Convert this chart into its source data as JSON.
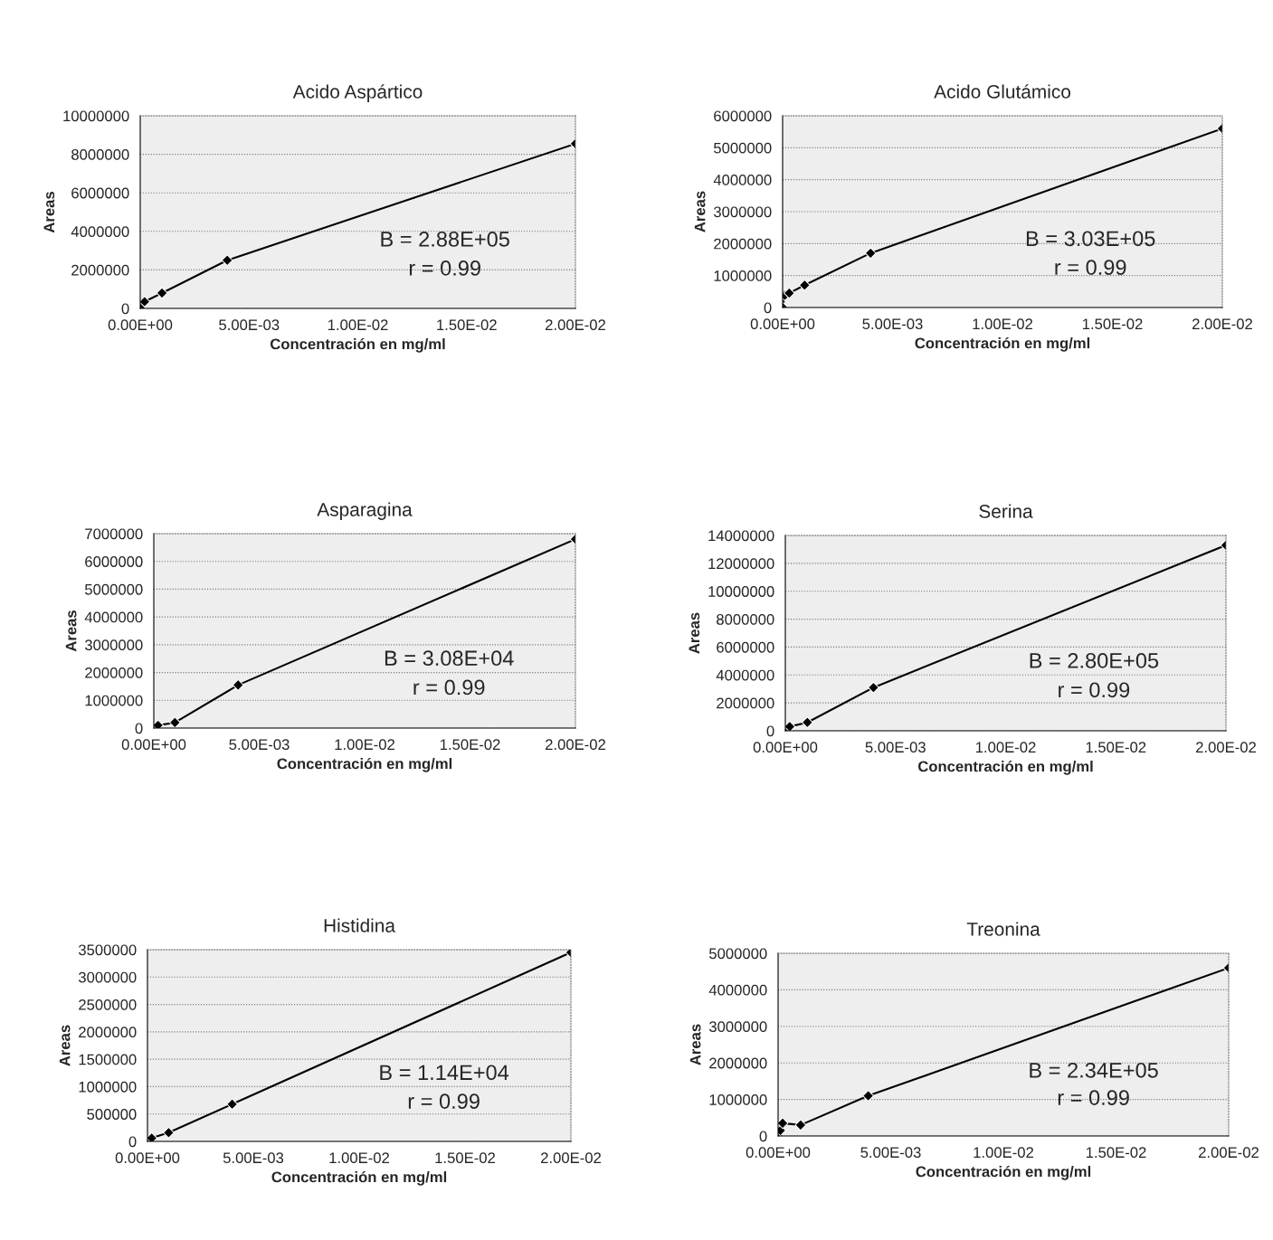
{
  "chart_data": [
    {
      "type": "line",
      "title": "Acido Aspártico",
      "xlabel": "Concentración en mg/ml",
      "ylabel": "Areas",
      "marker": "diamond",
      "grid": "y",
      "legend": false,
      "x": [
        0,
        0.0001,
        0.0002,
        0.001,
        0.004,
        0.02
      ],
      "series": [
        {
          "color": "#000000",
          "values": [
            50000,
            null,
            350000,
            800000,
            2500000,
            8550000
          ]
        }
      ],
      "xlim": [
        0,
        0.02
      ],
      "xticks": [
        {
          "value": 0,
          "label": "0.00E+00"
        },
        {
          "value": 0.005,
          "label": "5.00E-03"
        },
        {
          "value": 0.01,
          "label": "1.00E-02"
        },
        {
          "value": 0.015,
          "label": "1.50E-02"
        },
        {
          "value": 0.02,
          "label": "2.00E-02"
        }
      ],
      "ylim": [
        0,
        10000000
      ],
      "yticks": [
        0,
        2000000,
        4000000,
        6000000,
        8000000,
        10000000
      ],
      "annotations": [
        "B = 2.88E+05",
        "r = 0.99"
      ]
    },
    {
      "type": "line",
      "title": "Acido Glutámico",
      "xlabel": "Concentración en mg/ml",
      "ylabel": "Areas",
      "marker": "diamond",
      "grid": "y",
      "legend": false,
      "x": [
        0,
        0.0001,
        0.0003,
        0.001,
        0.004,
        0.02
      ],
      "series": [
        {
          "color": "#000000",
          "values": [
            0,
            380000,
            450000,
            700000,
            1700000,
            5600000
          ]
        }
      ],
      "xlim": [
        0,
        0.02
      ],
      "xticks": [
        {
          "value": 0,
          "label": "0.00E+00"
        },
        {
          "value": 0.005,
          "label": "5.00E-03"
        },
        {
          "value": 0.01,
          "label": "1.00E-02"
        },
        {
          "value": 0.015,
          "label": "1.50E-02"
        },
        {
          "value": 0.02,
          "label": "2.00E-02"
        }
      ],
      "ylim": [
        0,
        6000000
      ],
      "yticks": [
        0,
        1000000,
        2000000,
        3000000,
        4000000,
        5000000,
        6000000
      ],
      "annotations": [
        "B = 3.03E+05",
        "r = 0.99"
      ]
    },
    {
      "type": "line",
      "title": "Asparagina",
      "xlabel": "Concentración en mg/ml",
      "ylabel": "Areas",
      "marker": "diamond",
      "grid": "y",
      "legend": false,
      "x": [
        0,
        0.0001,
        0.0002,
        0.001,
        0.004,
        0.02
      ],
      "series": [
        {
          "color": "#000000",
          "values": [
            20000,
            50000,
            100000,
            200000,
            1550000,
            6800000
          ]
        }
      ],
      "xlim": [
        0,
        0.02
      ],
      "xticks": [
        {
          "value": 0,
          "label": "0.00E+00"
        },
        {
          "value": 0.005,
          "label": "5.00E-03"
        },
        {
          "value": 0.01,
          "label": "1.00E-02"
        },
        {
          "value": 0.015,
          "label": "1.50E-02"
        },
        {
          "value": 0.02,
          "label": "2.00E-02"
        }
      ],
      "ylim": [
        0,
        7000000
      ],
      "yticks": [
        0,
        1000000,
        2000000,
        3000000,
        4000000,
        5000000,
        6000000,
        7000000
      ],
      "annotations": [
        "B = 3.08E+04",
        "r = 0.99"
      ]
    },
    {
      "type": "line",
      "title": "Serina",
      "xlabel": "Concentración en mg/ml",
      "ylabel": "Areas",
      "marker": "diamond",
      "grid": "y",
      "legend": false,
      "x": [
        0,
        0.0001,
        0.0002,
        0.001,
        0.004,
        0.02
      ],
      "series": [
        {
          "color": "#000000",
          "values": [
            50000,
            150000,
            300000,
            600000,
            3100000,
            13300000
          ]
        }
      ],
      "xlim": [
        0,
        0.02
      ],
      "xticks": [
        {
          "value": 0,
          "label": "0.00E+00"
        },
        {
          "value": 0.005,
          "label": "5.00E-03"
        },
        {
          "value": 0.01,
          "label": "1.00E-02"
        },
        {
          "value": 0.015,
          "label": "1.50E-02"
        },
        {
          "value": 0.02,
          "label": "2.00E-02"
        }
      ],
      "ylim": [
        0,
        14000000
      ],
      "yticks": [
        0,
        2000000,
        4000000,
        6000000,
        8000000,
        10000000,
        12000000,
        14000000
      ],
      "annotations": [
        "B = 2.80E+05",
        "r = 0.99"
      ]
    },
    {
      "type": "line",
      "title": "Histidina",
      "xlabel": "Concentración en mg/ml",
      "ylabel": "Areas",
      "marker": "diamond",
      "grid": "y",
      "legend": false,
      "x": [
        0,
        0.0001,
        0.0002,
        0.001,
        0.004,
        0.02
      ],
      "series": [
        {
          "color": "#000000",
          "values": [
            10000,
            30000,
            60000,
            160000,
            680000,
            3450000
          ]
        }
      ],
      "xlim": [
        0,
        0.02
      ],
      "xticks": [
        {
          "value": 0,
          "label": "0.00E+00"
        },
        {
          "value": 0.005,
          "label": "5.00E-03"
        },
        {
          "value": 0.01,
          "label": "1.00E-02"
        },
        {
          "value": 0.015,
          "label": "1.50E-02"
        },
        {
          "value": 0.02,
          "label": "2.00E-02"
        }
      ],
      "ylim": [
        0,
        3500000
      ],
      "yticks": [
        0,
        500000,
        1000000,
        1500000,
        2000000,
        2500000,
        3000000,
        3500000
      ],
      "annotations": [
        "B = 1.14E+04",
        "r = 0.99"
      ]
    },
    {
      "type": "line",
      "title": "Treonina",
      "xlabel": "Concentración en mg/ml",
      "ylabel": "Areas",
      "marker": "diamond",
      "grid": "y",
      "legend": false,
      "x": [
        0,
        0.0001,
        0.0002,
        0.001,
        0.004,
        0.02
      ],
      "series": [
        {
          "color": "#000000",
          "values": [
            0,
            150000,
            350000,
            300000,
            1100000,
            4600000
          ]
        }
      ],
      "xlim": [
        0,
        0.02
      ],
      "xticks": [
        {
          "value": 0,
          "label": "0.00E+00"
        },
        {
          "value": 0.005,
          "label": "5.00E-03"
        },
        {
          "value": 0.01,
          "label": "1.00E-02"
        },
        {
          "value": 0.015,
          "label": "1.50E-02"
        },
        {
          "value": 0.02,
          "label": "2.00E-02"
        }
      ],
      "ylim": [
        0,
        5000000
      ],
      "yticks": [
        0,
        1000000,
        2000000,
        3000000,
        4000000,
        5000000
      ],
      "annotations": [
        "B = 2.34E+05",
        "r = 0.99"
      ]
    }
  ]
}
